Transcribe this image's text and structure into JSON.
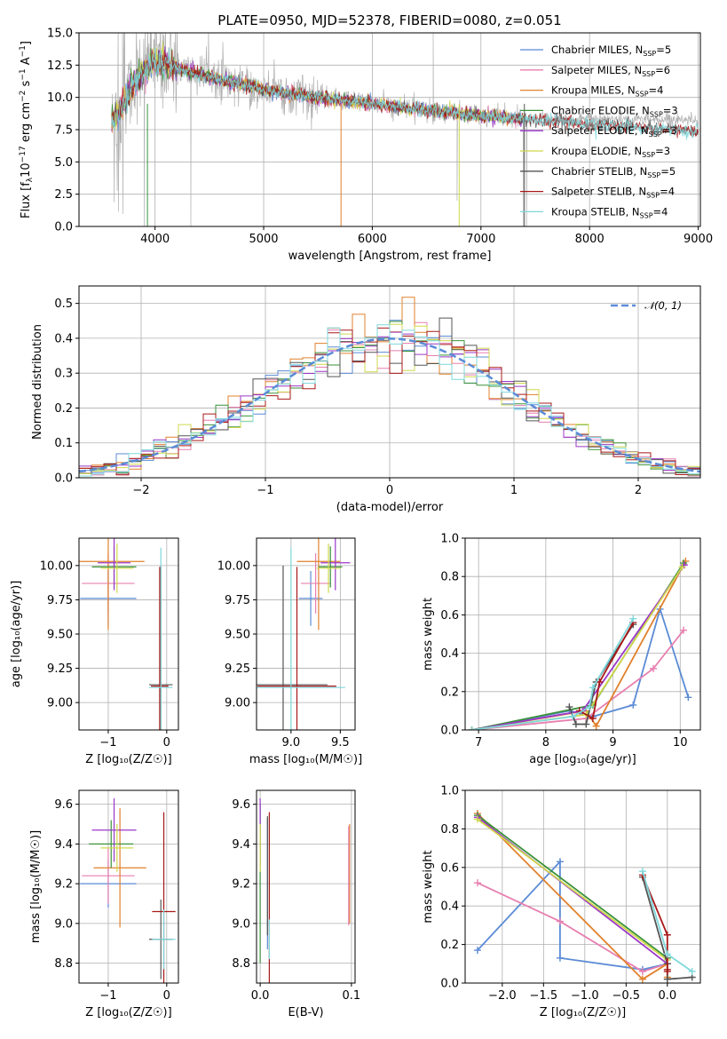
{
  "chart_data": [
    {
      "id": "spectrum",
      "type": "line",
      "title": "PLATE=0950, MJD=52378, FIBERID=0080, z=0.051",
      "xlabel": "wavelength [Angstrom, rest frame]",
      "ylabel": "Flux [f$_\\lambda$10$^{-17}$ erg cm$^{-2}$ s$^{-1}$ A$^{-1}$]",
      "ylabel_parts": {
        "pre": "Flux [f",
        "sub1": "λ",
        "mid1": "10",
        "sup1": "−17",
        "mid2": " erg cm",
        "sup2": "−2",
        "mid3": " s",
        "sup3": "−1",
        "mid4": " A",
        "sup4": "−1",
        "post": "]"
      },
      "xlim": [
        3300,
        9020
      ],
      "ylim": [
        0,
        15
      ],
      "xticks": [
        4000,
        5000,
        6000,
        7000,
        8000,
        9000
      ],
      "yticks": [
        0.0,
        2.5,
        5.0,
        7.5,
        10.0,
        12.5,
        15.0
      ],
      "ytick_labels": [
        "0.0",
        "2.5",
        "5.0",
        "7.5",
        "10.0",
        "12.5",
        "15.0"
      ],
      "data_color": "#808080",
      "data_color_2": "#b0b0b0",
      "data_x_range": [
        3600,
        9000
      ],
      "continuum": {
        "x": [
          3600,
          3700,
          3800,
          3900,
          4000,
          4100,
          4200,
          4300,
          4400,
          4500,
          4700,
          5000,
          5300,
          5600,
          6000,
          6500,
          7000,
          7400
        ],
        "y": [
          8.0,
          9.5,
          11.0,
          12.0,
          12.7,
          12.5,
          12.3,
          12.0,
          11.8,
          11.6,
          11.2,
          10.6,
          10.2,
          9.9,
          9.5,
          9.0,
          8.6,
          8.3
        ]
      },
      "legend_position": "upper right",
      "series": [
        {
          "name": "Chabrier MILES",
          "nssp": "5",
          "color": "#5b8bd6"
        },
        {
          "name": "Salpeter MILES",
          "nssp": "6",
          "color": "#e87fb0"
        },
        {
          "name": "Kroupa MILES",
          "nssp": "4",
          "color": "#e1812c"
        },
        {
          "name": "Chabrier ELODIE",
          "nssp": "3",
          "color": "#3a923a"
        },
        {
          "name": "Salpeter ELODIE",
          "nssp": "3",
          "color": "#9b37c8"
        },
        {
          "name": "Kroupa ELODIE",
          "nssp": "3",
          "color": "#d0d84c"
        },
        {
          "name": "Chabrier STELIB",
          "nssp": "5",
          "color": "#555555"
        },
        {
          "name": "Salpeter STELIB",
          "nssp": "4",
          "color": "#a81818"
        },
        {
          "name": "Kroupa STELIB",
          "nssp": "4",
          "color": "#7fd8dc"
        }
      ]
    },
    {
      "id": "residuals",
      "type": "histogram",
      "xlabel": "(data-model)/error",
      "ylabel": "Normed distribution",
      "xlim": [
        -2.5,
        2.5
      ],
      "ylim": [
        0,
        0.55
      ],
      "xticks": [
        -2,
        -1,
        0,
        1,
        2
      ],
      "xtick_labels": [
        "−2",
        "−1",
        "0",
        "1",
        "2"
      ],
      "yticks": [
        0.0,
        0.1,
        0.2,
        0.3,
        0.4,
        0.5
      ],
      "ytick_labels": [
        "0.0",
        "0.1",
        "0.2",
        "0.3",
        "0.4",
        "0.5"
      ],
      "gaussian_label": "$\\mathcal{N}(0,1)$",
      "gaussian_label_text": "𝒩(0, 1)",
      "gaussian_color": "#5b8bd6",
      "legend_position": "upper right",
      "bin_width": 0.1
    },
    {
      "id": "age-vs-Z",
      "type": "errorbar",
      "xlabel_text": "Z [log₁₀(Z/Z☉)]",
      "ylabel_text": "age  [log₁₀(age/yr)]",
      "xlim": [
        -1.5,
        0.2
      ],
      "ylim": [
        8.8,
        10.2
      ],
      "xticks": [
        -1,
        0
      ],
      "xtick_labels": [
        "−1",
        "0"
      ],
      "yticks": [
        9.0,
        9.25,
        9.5,
        9.75,
        10.0
      ],
      "ytick_labels": [
        "9.00",
        "9.25",
        "9.50",
        "9.75",
        "10.00"
      ],
      "points": [
        {
          "x": -1.0,
          "xerr": 0.48,
          "y": 9.76,
          "yerr": 0.2,
          "c": 0
        },
        {
          "x": -1.0,
          "xerr": 0.45,
          "y": 9.87,
          "yerr": 0.22,
          "c": 1
        },
        {
          "x": -1.0,
          "xerr": 0.62,
          "y": 10.03,
          "yerr": 0.5,
          "c": 2
        },
        {
          "x": -0.9,
          "xerr": 0.38,
          "y": 9.99,
          "yerr": 0.15,
          "c": 3
        },
        {
          "x": -0.9,
          "xerr": 0.28,
          "y": 10.02,
          "yerr": 0.2,
          "c": 4
        },
        {
          "x": -0.85,
          "xerr": 0.28,
          "y": 9.98,
          "yerr": 0.18,
          "c": 5
        },
        {
          "x": -0.1,
          "xerr": 0.2,
          "y": 9.13,
          "yerr": 0.87,
          "c": 6
        },
        {
          "x": -0.12,
          "xerr": 0.15,
          "y": 9.12,
          "yerr": 0.87,
          "c": 7
        },
        {
          "x": -0.1,
          "xerr": 0.2,
          "y": 9.11,
          "yerr": 1.02,
          "c": 8
        }
      ]
    },
    {
      "id": "age-vs-mass",
      "type": "errorbar",
      "xlabel_text": "mass [log₁₀(M/M☉)]",
      "xlim": [
        8.65,
        9.65
      ],
      "ylim": [
        8.8,
        10.2
      ],
      "xticks": [
        9.0,
        9.5
      ],
      "xtick_labels": [
        "9.0",
        "9.5"
      ],
      "yticks": [
        9.0,
        9.25,
        9.5,
        9.75,
        10.0
      ],
      "ytick_labels": [
        "9.00",
        "9.25",
        "9.50",
        "9.75",
        "10.00"
      ],
      "points": [
        {
          "x": 9.2,
          "xerr": 0.12,
          "y": 9.76,
          "yerr": 0.2,
          "c": 0
        },
        {
          "x": 9.25,
          "xerr": 0.15,
          "y": 9.87,
          "yerr": 0.22,
          "c": 1
        },
        {
          "x": 9.28,
          "xerr": 0.22,
          "y": 10.03,
          "yerr": 0.5,
          "c": 2
        },
        {
          "x": 9.4,
          "xerr": 0.12,
          "y": 9.99,
          "yerr": 0.15,
          "c": 3
        },
        {
          "x": 9.45,
          "xerr": 0.15,
          "y": 10.02,
          "yerr": 0.2,
          "c": 4
        },
        {
          "x": 9.38,
          "xerr": 0.12,
          "y": 9.98,
          "yerr": 0.18,
          "c": 5
        },
        {
          "x": 8.92,
          "xerr": 0.45,
          "y": 9.13,
          "yerr": 0.87,
          "c": 6
        },
        {
          "x": 9.06,
          "xerr": 0.4,
          "y": 9.12,
          "yerr": 0.87,
          "c": 7
        },
        {
          "x": 9.0,
          "xerr": 0.55,
          "y": 9.11,
          "yerr": 1.02,
          "c": 8
        }
      ]
    },
    {
      "id": "mass-weight-vs-age",
      "type": "line",
      "xlabel_text": "age  [log₁₀(age/yr)]",
      "ylabel_text": "mass weight",
      "xlim": [
        6.8,
        10.3
      ],
      "ylim": [
        0,
        1.0
      ],
      "xticks": [
        7,
        8,
        9,
        10
      ],
      "xtick_labels": [
        "7",
        "8",
        "9",
        "10"
      ],
      "yticks": [
        0.0,
        0.2,
        0.4,
        0.6,
        0.8,
        1.0
      ],
      "ytick_labels": [
        "0.0",
        "0.2",
        "0.4",
        "0.6",
        "0.8",
        "1.0"
      ],
      "series": [
        {
          "c": 0,
          "x": [
            6.9,
            8.35,
            8.7,
            9.3,
            9.7,
            10.12
          ],
          "y": [
            0.0,
            0.1,
            0.07,
            0.13,
            0.63,
            0.17
          ]
        },
        {
          "c": 1,
          "x": [
            6.9,
            8.6,
            9.6,
            10.05
          ],
          "y": [
            0.0,
            0.06,
            0.32,
            0.52
          ]
        },
        {
          "c": 2,
          "x": [
            6.9,
            8.6,
            8.75,
            10.08
          ],
          "y": [
            0.0,
            0.1,
            0.02,
            0.88
          ]
        },
        {
          "c": 3,
          "x": [
            6.9,
            8.7,
            10.05
          ],
          "y": [
            0.0,
            0.13,
            0.87
          ]
        },
        {
          "c": 4,
          "x": [
            6.9,
            8.55,
            10.06
          ],
          "y": [
            0.0,
            0.1,
            0.86
          ]
        },
        {
          "c": 5,
          "x": [
            6.9,
            8.6,
            10.03
          ],
          "y": [
            0.0,
            0.08,
            0.85
          ]
        },
        {
          "c": 6,
          "x": [
            8.35,
            8.45,
            8.6,
            8.75,
            9.3
          ],
          "y": [
            0.12,
            0.03,
            0.03,
            0.25,
            0.55
          ]
        },
        {
          "c": 7,
          "x": [
            8.5,
            8.7,
            8.8,
            9.3
          ],
          "y": [
            0.1,
            0.06,
            0.25,
            0.56
          ]
        },
        {
          "c": 8,
          "x": [
            6.9,
            8.4,
            8.65,
            8.7,
            9.3
          ],
          "y": [
            0.0,
            0.07,
            0.12,
            0.22,
            0.58
          ]
        }
      ]
    },
    {
      "id": "mass-vs-Z",
      "type": "errorbar",
      "xlabel_text": "Z [log₁₀(Z/Z☉)]",
      "ylabel_text": "mass [log₁₀(M/M☉)]",
      "xlim": [
        -1.5,
        0.2
      ],
      "ylim": [
        8.7,
        9.67
      ],
      "xticks": [
        -1,
        0
      ],
      "xtick_labels": [
        "−1",
        "0"
      ],
      "yticks": [
        8.8,
        9.0,
        9.2,
        9.4,
        9.6
      ],
      "ytick_labels": [
        "8.8",
        "9.0",
        "9.2",
        "9.4",
        "9.6"
      ],
      "points": [
        {
          "x": -1.0,
          "xerr": 0.48,
          "y": 9.2,
          "yerr": 0.12,
          "c": 0
        },
        {
          "x": -1.0,
          "xerr": 0.45,
          "y": 9.24,
          "yerr": 0.14,
          "c": 1
        },
        {
          "x": -0.8,
          "xerr": 0.45,
          "y": 9.28,
          "yerr": 0.3,
          "c": 2
        },
        {
          "x": -0.95,
          "xerr": 0.38,
          "y": 9.4,
          "yerr": 0.12,
          "c": 3
        },
        {
          "x": -0.9,
          "xerr": 0.38,
          "y": 9.47,
          "yerr": 0.16,
          "c": 4
        },
        {
          "x": -0.85,
          "xerr": 0.28,
          "y": 9.38,
          "yerr": 0.12,
          "c": 5
        },
        {
          "x": -0.1,
          "xerr": 0.2,
          "y": 8.92,
          "yerr": 0.2,
          "c": 6
        },
        {
          "x": -0.05,
          "xerr": 0.2,
          "y": 9.06,
          "yerr": 0.5,
          "c": 7
        },
        {
          "x": -0.05,
          "xerr": 0.2,
          "y": 8.92,
          "yerr": 0.15,
          "c": 8
        }
      ]
    },
    {
      "id": "mass-vs-ebv",
      "type": "errorbar",
      "xlabel_text": "E(B-V)",
      "xlim": [
        -0.004,
        0.104
      ],
      "ylim": [
        8.7,
        9.67
      ],
      "xticks": [
        0.0,
        0.1
      ],
      "xtick_labels": [
        "0.0",
        "0.1"
      ],
      "yticks": [
        8.8,
        9.0,
        9.2,
        9.4,
        9.6
      ],
      "ytick_labels": [
        "8.8",
        "9.0",
        "9.2",
        "9.4",
        "9.6"
      ],
      "points": [
        {
          "x": 0.0,
          "y": 9.2,
          "yerr": 0.4,
          "c": 3
        },
        {
          "x": 0.0,
          "y": 9.46,
          "yerr": 0.17,
          "c": 4
        },
        {
          "x": 0.0,
          "y": 9.38,
          "yerr": 0.12,
          "c": 5
        },
        {
          "x": 0.008,
          "y": 9.2,
          "yerr": 0.33,
          "c": 0
        },
        {
          "x": 0.008,
          "y": 9.24,
          "yerr": 0.3,
          "c": 6
        },
        {
          "x": 0.01,
          "y": 9.06,
          "yerr": 0.5,
          "c": 7
        },
        {
          "x": 0.01,
          "y": 8.92,
          "yerr": 0.1,
          "c": 8
        },
        {
          "x": 0.098,
          "y": 9.25,
          "yerr": 0.25,
          "c": 2
        },
        {
          "x": 0.097,
          "y": 9.24,
          "yerr": 0.25,
          "c": 1
        }
      ]
    },
    {
      "id": "mass-weight-vs-Z",
      "type": "line",
      "xlabel_text": "Z [log₁₀(Z/Z☉)]",
      "ylabel_text": "mass weight",
      "xlim": [
        -2.45,
        0.4
      ],
      "ylim": [
        0,
        1.0
      ],
      "xticks": [
        -2.0,
        -1.5,
        -1.0,
        -0.5,
        0.0
      ],
      "xtick_labels": [
        "−2.0",
        "−1.5",
        "−1.0",
        "−0.5",
        "0.0"
      ],
      "yticks": [
        0.0,
        0.2,
        0.4,
        0.6,
        0.8,
        1.0
      ],
      "ytick_labels": [
        "0.0",
        "0.2",
        "0.4",
        "0.6",
        "0.8",
        "1.0"
      ],
      "series": [
        {
          "c": 0,
          "x": [
            -2.3,
            -1.3,
            -1.3,
            -0.3,
            0.0
          ],
          "y": [
            0.17,
            0.63,
            0.13,
            0.07,
            0.1
          ]
        },
        {
          "c": 1,
          "x": [
            -2.3,
            -1.3,
            -0.3,
            0.0
          ],
          "y": [
            0.52,
            0.32,
            0.06,
            0.1
          ]
        },
        {
          "c": 2,
          "x": [
            -2.3,
            -0.3,
            0.0,
            0.0
          ],
          "y": [
            0.88,
            0.02,
            0.1,
            0.03
          ]
        },
        {
          "c": 3,
          "x": [
            -2.3,
            0.0
          ],
          "y": [
            0.87,
            0.13
          ]
        },
        {
          "c": 4,
          "x": [
            -2.3,
            0.0
          ],
          "y": [
            0.86,
            0.1
          ]
        },
        {
          "c": 5,
          "x": [
            -2.3,
            0.0
          ],
          "y": [
            0.85,
            0.12
          ]
        },
        {
          "c": 6,
          "x": [
            -0.3,
            0.0,
            0.0,
            0.3
          ],
          "y": [
            0.55,
            0.1,
            0.02,
            0.03
          ]
        },
        {
          "c": 7,
          "x": [
            -0.3,
            0.0,
            0.0,
            0.0
          ],
          "y": [
            0.56,
            0.25,
            0.07,
            0.06
          ]
        },
        {
          "c": 8,
          "x": [
            -0.3,
            0.0,
            0.3
          ],
          "y": [
            0.58,
            0.15,
            0.06
          ]
        }
      ]
    }
  ]
}
